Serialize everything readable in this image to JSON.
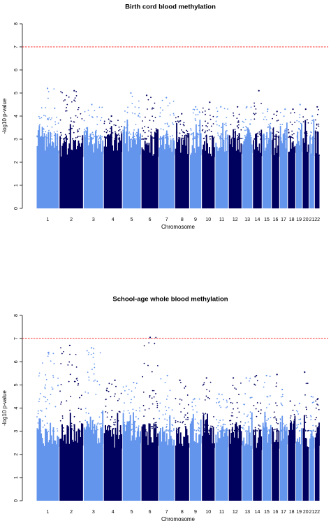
{
  "chart_data": [
    {
      "type": "scatter",
      "subtype": "manhattan",
      "title": "Birth cord blood methylation",
      "xlabel": "Chromosome",
      "ylabel": "-log10 p-value",
      "ylim": [
        0,
        8
      ],
      "yticks": [
        "0",
        "1",
        "2",
        "3",
        "4",
        "5",
        "6",
        "7",
        "8"
      ],
      "threshold": 7,
      "threshold_color": "#ff3333",
      "colors": [
        "#6495ed",
        "#00005f"
      ],
      "chromosomes": [
        "1",
        "2",
        "3",
        "4",
        "5",
        "6",
        "7",
        "8",
        "9",
        "10",
        "11",
        "12",
        "13",
        "14",
        "15",
        "16",
        "17",
        "18",
        "19",
        "20",
        "21",
        "22"
      ],
      "chrom_max": [
        5.2,
        5.1,
        4.5,
        4.0,
        5.0,
        4.9,
        4.8,
        4.1,
        4.4,
        4.6,
        4.4,
        4.4,
        4.4,
        5.1,
        4.3,
        4.2,
        4.3,
        4.3,
        4.5,
        4.3,
        4.0,
        4.4
      ]
    },
    {
      "type": "scatter",
      "subtype": "manhattan",
      "title": "School-age whole blood methylation",
      "xlabel": "Chromosome",
      "ylabel": "-log10 p-value",
      "ylim": [
        0,
        8
      ],
      "yticks": [
        "0",
        "1",
        "2",
        "3",
        "4",
        "5",
        "6",
        "7",
        "8"
      ],
      "threshold": 7,
      "threshold_color": "#ff3333",
      "colors": [
        "#6495ed",
        "#00005f"
      ],
      "chromosomes": [
        "1",
        "2",
        "3",
        "4",
        "5",
        "6",
        "7",
        "8",
        "9",
        "10",
        "11",
        "12",
        "13",
        "14",
        "15",
        "16",
        "17",
        "18",
        "19",
        "20",
        "21",
        "22"
      ],
      "chrom_max": [
        6.4,
        6.7,
        6.6,
        5.2,
        5.1,
        7.05,
        5.4,
        5.2,
        4.4,
        5.3,
        4.6,
        5.3,
        5.3,
        5.4,
        5.4,
        5.45,
        4.8,
        4.3,
        4.2,
        5.55,
        4.5,
        4.4
      ]
    }
  ]
}
